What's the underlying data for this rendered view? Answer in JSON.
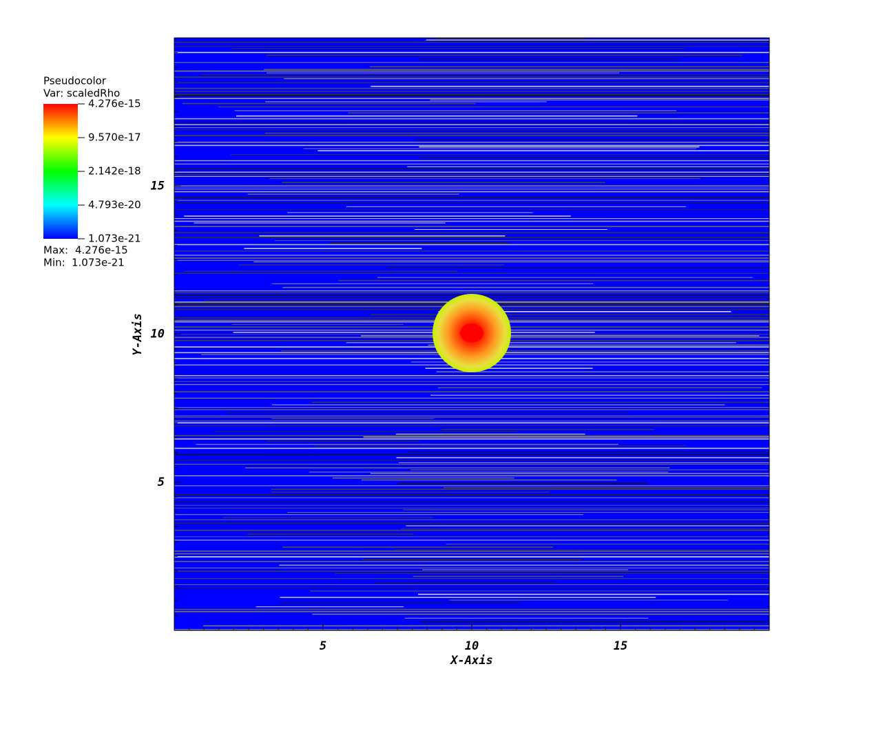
{
  "chart_data": {
    "type": "pseudocolor",
    "xlabel": "X-Axis",
    "ylabel": "Y-Axis",
    "xlim": [
      0,
      20
    ],
    "ylim": [
      0,
      20
    ],
    "xticks": [
      5,
      10,
      15
    ],
    "yticks": [
      5,
      10,
      15
    ],
    "legend": {
      "title": "Pseudocolor",
      "variable": "Var: scaledRho",
      "scale": "log",
      "colors": [
        "#0000ff",
        "#00ffff",
        "#00ff00",
        "#ffff00",
        "#ff0000"
      ],
      "clim": [
        1.073e-21,
        4.276e-15
      ],
      "ticks": [
        {
          "value": 4.276e-15,
          "label": "4.276e-15"
        },
        {
          "value": 9.57e-17,
          "label": "9.570e-17"
        },
        {
          "value": 2.142e-18,
          "label": "2.142e-18"
        },
        {
          "value": 4.793e-20,
          "label": "4.793e-20"
        },
        {
          "value": 1.073e-21,
          "label": "1.073e-21"
        }
      ],
      "max_label": "Max:",
      "max": 4.276e-15,
      "min_label": "Min:",
      "min": 1.073e-21
    }
  }
}
